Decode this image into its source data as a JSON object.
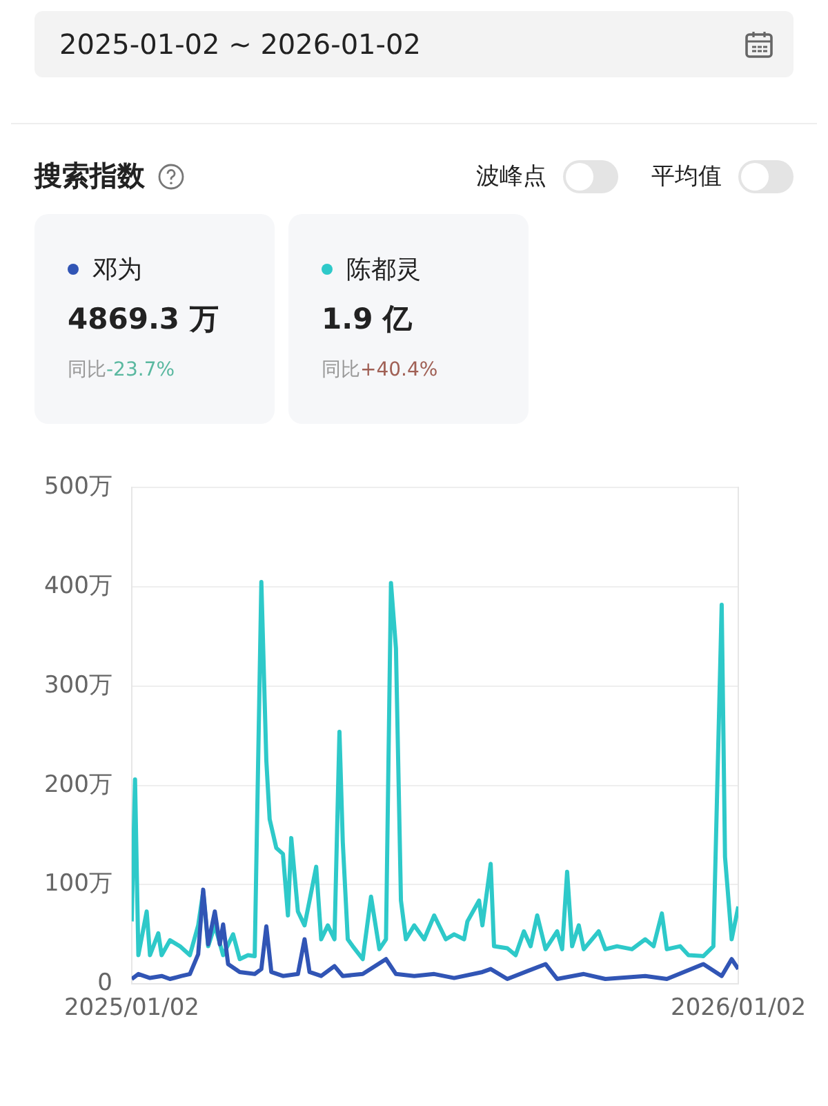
{
  "chart_data": {
    "type": "line",
    "title": "搜索指数",
    "annotations": [
      "2025-01-02 ~ 2026-01-02",
      "波峰点",
      "平均值",
      "4869.3 万",
      "同比-23.7%",
      "1.9 亿",
      "同比+40.4%"
    ],
    "legend": "top",
    "grid": "y",
    "marker": "none",
    "line_style": "solid",
    "xlim": [
      "2025-01-02",
      "2026-01-02"
    ],
    "xticks": [
      {
        "value": "2025-01-02",
        "label": "2025/01/02"
      },
      {
        "value": "2026-01-02",
        "label": "2026/01/02"
      }
    ],
    "ylim": [
      0,
      500
    ],
    "yticks": [
      0,
      {
        "value": 100,
        "label": "100万"
      },
      {
        "value": 200,
        "label": "200万"
      },
      {
        "value": 300,
        "label": "300万"
      },
      {
        "value": 400,
        "label": "400万"
      },
      {
        "value": 500,
        "label": "500万"
      }
    ],
    "series": [
      {
        "name": "邓为",
        "color": "#3155b5",
        "x": [
          "2025-01-02",
          "2025-01-06",
          "2025-01-13",
          "2025-01-20",
          "2025-01-25",
          "2025-02-01",
          "2025-02-06",
          "2025-02-11",
          "2025-02-14",
          "2025-02-17",
          "2025-02-21",
          "2025-02-24",
          "2025-02-26",
          "2025-03-01",
          "2025-03-08",
          "2025-03-17",
          "2025-03-21",
          "2025-03-24",
          "2025-03-27",
          "2025-04-03",
          "2025-04-12",
          "2025-04-16",
          "2025-04-19",
          "2025-04-26",
          "2025-05-04",
          "2025-05-09",
          "2025-05-21",
          "2025-06-04",
          "2025-06-10",
          "2025-06-21",
          "2025-07-03",
          "2025-07-15",
          "2025-08-01",
          "2025-08-06",
          "2025-08-16",
          "2025-09-08",
          "2025-09-15",
          "2025-10-01",
          "2025-10-14",
          "2025-11-07",
          "2025-11-20",
          "2025-12-12",
          "2025-12-23",
          "2025-12-29",
          "2026-01-02"
        ],
        "values": [
          5,
          10,
          6,
          8,
          5,
          8,
          10,
          30,
          95,
          40,
          73,
          40,
          60,
          20,
          12,
          10,
          15,
          58,
          12,
          8,
          10,
          45,
          12,
          8,
          18,
          8,
          10,
          25,
          10,
          8,
          10,
          6,
          12,
          15,
          5,
          20,
          5,
          10,
          5,
          8,
          5,
          20,
          8,
          25,
          15
        ]
      },
      {
        "name": "陈都灵",
        "color": "#2ec9c9",
        "x": [
          "2025-01-02",
          "2025-01-04",
          "2025-01-06",
          "2025-01-11",
          "2025-01-13",
          "2025-01-18",
          "2025-01-20",
          "2025-01-25",
          "2025-01-31",
          "2025-02-06",
          "2025-02-11",
          "2025-02-14",
          "2025-02-17",
          "2025-02-21",
          "2025-02-26",
          "2025-03-04",
          "2025-03-08",
          "2025-03-13",
          "2025-03-17",
          "2025-03-21",
          "2025-03-24",
          "2025-03-26",
          "2025-03-30",
          "2025-04-03",
          "2025-04-06",
          "2025-04-08",
          "2025-04-12",
          "2025-04-16",
          "2025-04-19",
          "2025-04-23",
          "2025-04-26",
          "2025-04-30",
          "2025-05-04",
          "2025-05-07",
          "2025-05-09",
          "2025-05-12",
          "2025-05-15",
          "2025-05-21",
          "2025-05-26",
          "2025-05-31",
          "2025-06-04",
          "2025-06-07",
          "2025-06-10",
          "2025-06-13",
          "2025-06-16",
          "2025-06-21",
          "2025-06-27",
          "2025-07-03",
          "2025-07-10",
          "2025-07-15",
          "2025-07-21",
          "2025-07-23",
          "2025-07-30",
          "2025-08-01",
          "2025-08-06",
          "2025-08-08",
          "2025-08-16",
          "2025-08-21",
          "2025-08-26",
          "2025-08-30",
          "2025-09-03",
          "2025-09-08",
          "2025-09-15",
          "2025-09-18",
          "2025-09-21",
          "2025-09-24",
          "2025-09-28",
          "2025-10-01",
          "2025-10-10",
          "2025-10-14",
          "2025-10-21",
          "2025-10-30",
          "2025-11-07",
          "2025-11-12",
          "2025-11-17",
          "2025-11-20",
          "2025-11-28",
          "2025-12-03",
          "2025-12-12",
          "2025-12-18",
          "2025-12-23",
          "2025-12-25",
          "2025-12-29",
          "2026-01-02"
        ],
        "values": [
          63,
          206,
          29,
          73,
          29,
          51,
          29,
          44,
          38,
          29,
          59,
          93,
          38,
          59,
          29,
          50,
          25,
          29,
          28,
          405,
          225,
          166,
          137,
          131,
          69,
          147,
          73,
          59,
          84,
          118,
          45,
          59,
          45,
          254,
          143,
          45,
          38,
          25,
          88,
          35,
          45,
          404,
          338,
          84,
          45,
          59,
          45,
          69,
          45,
          50,
          45,
          63,
          84,
          59,
          121,
          38,
          36,
          29,
          53,
          38,
          69,
          35,
          53,
          35,
          113,
          38,
          59,
          35,
          53,
          35,
          38,
          35,
          45,
          38,
          71,
          35,
          38,
          29,
          28,
          38,
          382,
          128,
          45,
          78
        ]
      }
    ]
  }
}
